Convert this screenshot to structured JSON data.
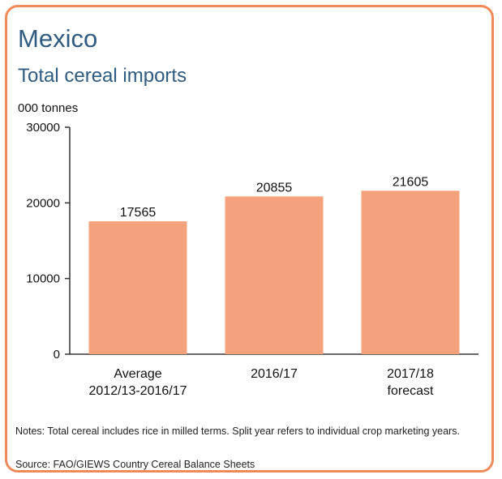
{
  "header": {
    "title": "Mexico",
    "subtitle": "Total cereal imports"
  },
  "footer": {
    "notes": "Notes: Total cereal includes rice in milled terms. Split year refers to individual crop marketing years.",
    "source": "Source: FAO/GIEWS Country Cereal Balance Sheets"
  },
  "chart_data": {
    "type": "bar",
    "title": "Total cereal imports",
    "ylabel": "000 tonnes",
    "xlabel": "",
    "categories": [
      [
        "Average",
        "2012/13-2016/17"
      ],
      [
        "2016/17"
      ],
      [
        "2017/18",
        "forecast"
      ]
    ],
    "values": [
      17565,
      20855,
      21605
    ],
    "value_labels": [
      "17565",
      "20855",
      "21605"
    ],
    "ylim": [
      0,
      30000
    ],
    "yticks": [
      0,
      10000,
      20000,
      30000
    ],
    "ytick_labels": [
      "0",
      "10000",
      "20000",
      "30000"
    ],
    "grid": false,
    "bar_color": "#f4a27c",
    "axis_color": "#333333"
  }
}
